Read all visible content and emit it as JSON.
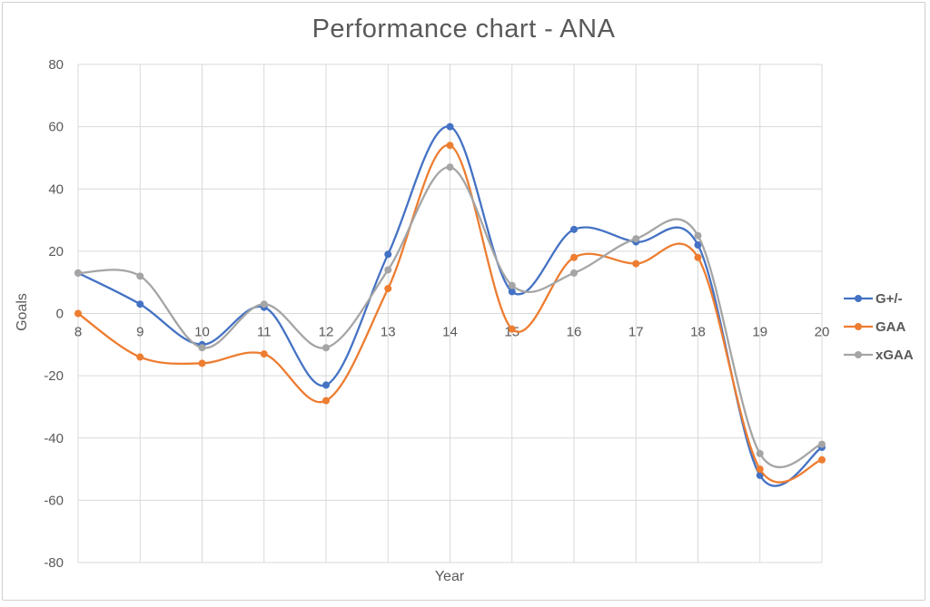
{
  "title": "Performance chart - ANA",
  "colors": {
    "series_blue": "#4472C4",
    "series_orange": "#ED7D31",
    "series_gray": "#A5A5A5",
    "grid": "#D9D9D9",
    "axis_text": "#595959",
    "frame_border": "#D2D0CE",
    "background": "#FFFFFF"
  },
  "chart_data": {
    "type": "line",
    "smooth": true,
    "title": "Performance chart - ANA",
    "xlabel": "Year",
    "ylabel": "Goals",
    "x": [
      8,
      9,
      10,
      11,
      12,
      13,
      14,
      15,
      16,
      17,
      18,
      19,
      20
    ],
    "series": [
      {
        "name": "G+/-",
        "color": "#4472C4",
        "values": [
          13,
          3,
          -10,
          2,
          -23,
          19,
          60,
          7,
          27,
          23,
          22,
          -52,
          -43
        ]
      },
      {
        "name": "GAA",
        "color": "#ED7D31",
        "values": [
          0,
          -14,
          -16,
          -13,
          -28,
          8,
          54,
          -5,
          18,
          16,
          18,
          -50,
          -47
        ]
      },
      {
        "name": "xGAA",
        "color": "#A5A5A5",
        "values": [
          13,
          12,
          -11,
          3,
          -11,
          14,
          47,
          9,
          13,
          24,
          25,
          -45,
          -42
        ]
      }
    ],
    "ylim": [
      -80,
      80
    ],
    "y_tick_step": 20,
    "grid": true,
    "legend_position": "right"
  }
}
